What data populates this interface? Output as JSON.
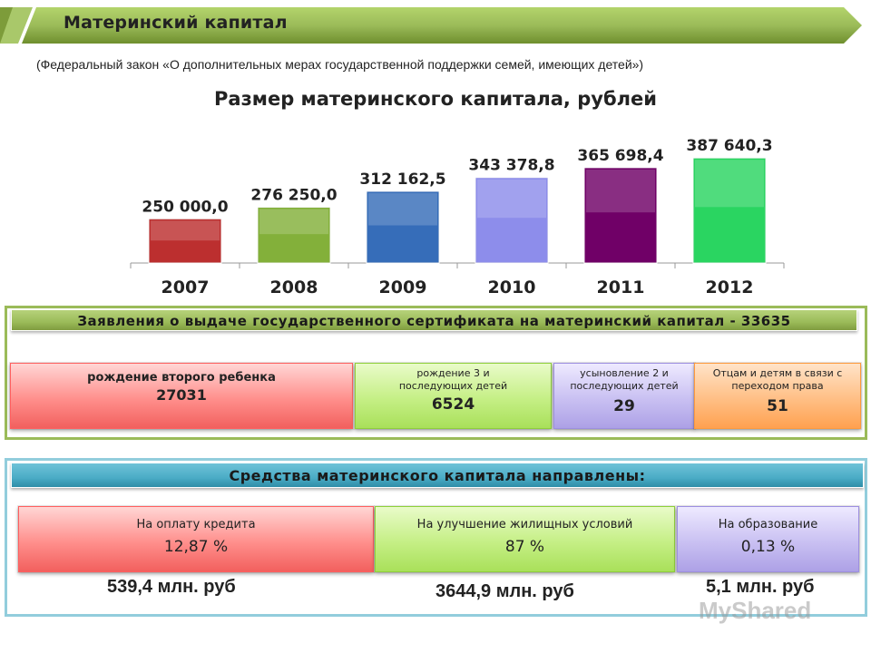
{
  "header": {
    "title": "Материнский капитал",
    "subtitle": "(Федеральный закон «О дополнительных мерах государственной поддержки семей, имеющих детей»)"
  },
  "chart_data": {
    "type": "bar",
    "title": "Размер материнского капитала, рублей",
    "categories": [
      "2007",
      "2008",
      "2009",
      "2010",
      "2011",
      "2012"
    ],
    "values": [
      250000.0,
      276250.0,
      312162.5,
      343378.8,
      365698.4,
      387640.3
    ],
    "value_labels": [
      "250 000,0",
      "276 250,0",
      "312 162,5",
      "343 378,8",
      "365 698,4",
      "387 640,3"
    ],
    "colors": [
      "#cc3333",
      "#8fbf3f",
      "#3b77c9",
      "#9999ff",
      "#7a0070",
      "#2ee86a"
    ],
    "xlabel": "",
    "ylabel": "",
    "legend": "none",
    "grid": false
  },
  "applications": {
    "header": "Заявления о выдаче государственного сертификата на материнский капитал - 33635",
    "cards": [
      {
        "label": "рождение второго ребенка",
        "value": "27031"
      },
      {
        "label": "рождение 3 и последующих детей",
        "value": "6524"
      },
      {
        "label": "усыновление 2 и последующих детей",
        "value": "29"
      },
      {
        "label": "Отцам и детям в связи с переходом права",
        "value": "51"
      }
    ]
  },
  "funds": {
    "header": "Средства материнского капитала направлены:",
    "cards": [
      {
        "label": "На оплату кредита",
        "value": "12,87 %",
        "amount": "539,4 млн. руб"
      },
      {
        "label": "На улучшение жилищных условий",
        "value": "87 %",
        "amount": "3644,9 млн. руб"
      },
      {
        "label": "На образование",
        "value": "0,13 %",
        "amount": "5,1 млн. руб"
      }
    ]
  },
  "watermark": "MyShared"
}
